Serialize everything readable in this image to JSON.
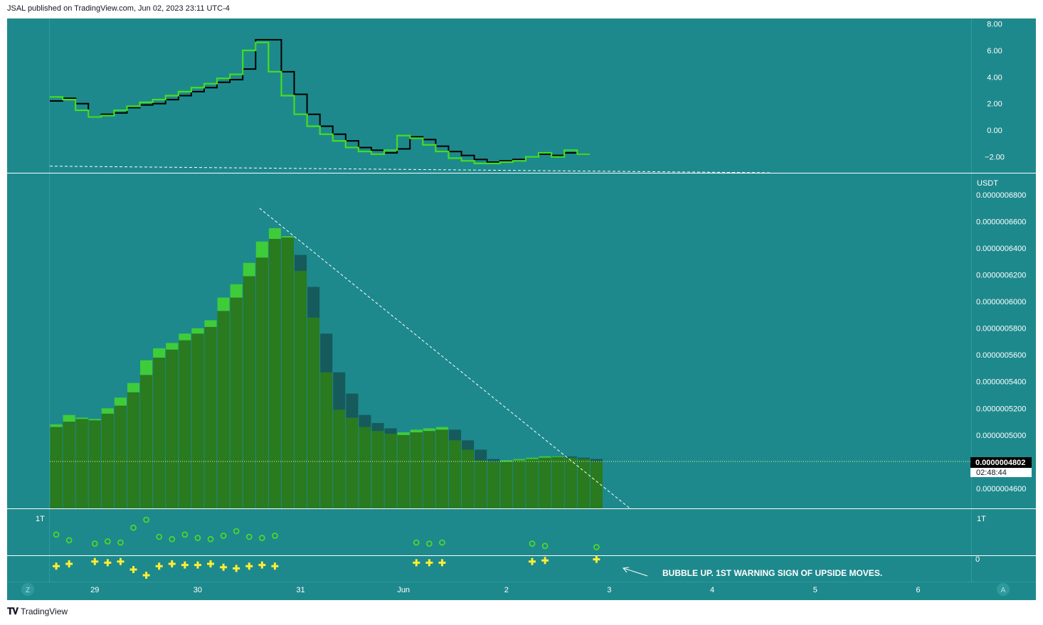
{
  "header": {
    "published": "JSAL published on TradingView.com, Jun 02, 2023 23:11 UTC-4"
  },
  "footer": {
    "brand": "TradingView"
  },
  "colors": {
    "bg": "#1e898c",
    "price_up": "#3fcc3a",
    "price_body": "#2a7a1f",
    "price_down": "#165a5c",
    "osc_green": "#44dd22",
    "osc_black": "#000000",
    "marker_yellow": "#ffee33",
    "marker_circle": "#55dd22",
    "divider": "#ffffff",
    "axis_text": "#ffffff"
  },
  "chart_data": [
    {
      "type": "line",
      "name": "oscillator",
      "yticks": [
        "8.00",
        "6.00",
        "4.00",
        "2.00",
        "0.00",
        "−2.00"
      ],
      "ylim": [
        -3.2,
        8.4
      ],
      "x": [
        0,
        1,
        2,
        3,
        4,
        5,
        6,
        7,
        8,
        9,
        10,
        11,
        12,
        13,
        14,
        15,
        16,
        17,
        18,
        19,
        20,
        21,
        22,
        23,
        24,
        25,
        26,
        27,
        28,
        29,
        30,
        31,
        32,
        33,
        34,
        35,
        36,
        37,
        38,
        39,
        40,
        41
      ],
      "series": [
        {
          "values": [
            2.5,
            2.3,
            1.5,
            1.0,
            1.1,
            1.5,
            1.8,
            2.1,
            2.3,
            2.6,
            2.9,
            3.2,
            3.5,
            3.9,
            4.2,
            6.0,
            6.6,
            4.4,
            2.6,
            1.2,
            0.3,
            -0.3,
            -0.8,
            -1.3,
            -1.6,
            -1.8,
            -1.5,
            -0.4,
            -0.6,
            -1.1,
            -1.6,
            -2.1,
            -2.3,
            -2.5,
            -2.5,
            -2.4,
            -2.3,
            -2.0,
            -1.7,
            -2.0,
            -1.5,
            -1.8
          ]
        },
        {
          "values": [
            2.2,
            2.4,
            2.0,
            1.0,
            1.2,
            1.3,
            1.7,
            1.9,
            2.0,
            2.3,
            2.6,
            2.9,
            3.2,
            3.6,
            3.8,
            4.6,
            6.8,
            6.8,
            4.4,
            2.7,
            1.2,
            0.3,
            -0.3,
            -0.8,
            -1.3,
            -1.5,
            -1.7,
            -1.4,
            -0.5,
            -0.7,
            -1.2,
            -1.6,
            -1.9,
            -2.2,
            -2.4,
            -2.3,
            -2.2,
            -2.0,
            -1.8,
            -1.9,
            -1.7,
            -1.8
          ]
        }
      ],
      "trendline": {
        "from": [
          0,
          -2.7
        ],
        "to": [
          56,
          -3.2
        ]
      }
    },
    {
      "type": "bar",
      "name": "price",
      "unit": "USDT",
      "yticks": [
        "0.0000006800",
        "0.0000006600",
        "0.0000006400",
        "0.0000006200",
        "0.0000006000",
        "0.0000005800",
        "0.0000005600",
        "0.0000005400",
        "0.0000005200",
        "0.0000005000",
        "0.0000004600"
      ],
      "ylim": [
        4.45e-07,
        6.96e-07
      ],
      "base": 4.45e-07,
      "bars": [
        [
          5.06e-07,
          5.08e-07,
          "up"
        ],
        [
          5.1e-07,
          5.15e-07,
          "up"
        ],
        [
          5.12e-07,
          5.13e-07,
          "up"
        ],
        [
          5.11e-07,
          5.12e-07,
          "up"
        ],
        [
          5.16e-07,
          5.2e-07,
          "up"
        ],
        [
          5.22e-07,
          5.28e-07,
          "up"
        ],
        [
          5.32e-07,
          5.39e-07,
          "up"
        ],
        [
          5.45e-07,
          5.56e-07,
          "up"
        ],
        [
          5.58e-07,
          5.65e-07,
          "up"
        ],
        [
          5.64e-07,
          5.69e-07,
          "up"
        ],
        [
          5.71e-07,
          5.76e-07,
          "up"
        ],
        [
          5.76e-07,
          5.8e-07,
          "up"
        ],
        [
          5.81e-07,
          5.86e-07,
          "up"
        ],
        [
          5.93e-07,
          6.03e-07,
          "up"
        ],
        [
          6.03e-07,
          6.13e-07,
          "up"
        ],
        [
          6.19e-07,
          6.29e-07,
          "up"
        ],
        [
          6.33e-07,
          6.45e-07,
          "up"
        ],
        [
          6.47e-07,
          6.55e-07,
          "up"
        ],
        [
          6.48e-07,
          6.49e-07,
          "up"
        ],
        [
          6.23e-07,
          6.35e-07,
          "down"
        ],
        [
          5.88e-07,
          6.11e-07,
          "down"
        ],
        [
          5.47e-07,
          5.76e-07,
          "down"
        ],
        [
          5.19e-07,
          5.47e-07,
          "down"
        ],
        [
          5.13e-07,
          5.31e-07,
          "down"
        ],
        [
          5.06e-07,
          5.15e-07,
          "down"
        ],
        [
          5.03e-07,
          5.09e-07,
          "down"
        ],
        [
          5.01e-07,
          5.05e-07,
          "down"
        ],
        [
          5e-07,
          5.02e-07,
          "up"
        ],
        [
          5.02e-07,
          5.04e-07,
          "up"
        ],
        [
          5.03e-07,
          5.05e-07,
          "up"
        ],
        [
          5.04e-07,
          5.06e-07,
          "up"
        ],
        [
          4.96e-07,
          5.04e-07,
          "down"
        ],
        [
          4.89e-07,
          4.96e-07,
          "down"
        ],
        [
          4.81e-07,
          4.89e-07,
          "down"
        ],
        [
          4.8e-07,
          4.82e-07,
          "down"
        ],
        [
          4.8e-07,
          4.81e-07,
          "up"
        ],
        [
          4.81e-07,
          4.82e-07,
          "up"
        ],
        [
          4.82e-07,
          4.83e-07,
          "up"
        ],
        [
          4.83e-07,
          4.84e-07,
          "up"
        ],
        [
          4.84e-07,
          4.84e-07,
          "up"
        ],
        [
          4.83e-07,
          4.84e-07,
          "down"
        ],
        [
          4.82e-07,
          4.83e-07,
          "down"
        ],
        [
          4.802e-07,
          4.82e-07,
          "down"
        ]
      ],
      "trendline": {
        "from": [
          16.3,
          6.7e-07
        ],
        "to": [
          45.1,
          4.45e-07
        ]
      },
      "last_price": "0.0000004802",
      "countdown": "02:48:44"
    },
    {
      "type": "scatter",
      "name": "signals",
      "ylabel_left": "1T",
      "ylabel_right": "1T",
      "ylabel_zero": "0",
      "circles": [
        [
          0,
          1.2
        ],
        [
          1,
          0.7
        ],
        [
          3,
          0.4
        ],
        [
          4,
          0.6
        ],
        [
          5,
          0.5
        ],
        [
          6,
          1.8
        ],
        [
          7,
          2.5
        ],
        [
          8,
          1.0
        ],
        [
          9,
          0.8
        ],
        [
          10,
          1.2
        ],
        [
          11,
          0.9
        ],
        [
          12,
          0.8
        ],
        [
          13,
          1.1
        ],
        [
          14,
          1.5
        ],
        [
          15,
          1.0
        ],
        [
          16,
          0.9
        ],
        [
          17,
          1.1
        ],
        [
          28,
          0.5
        ],
        [
          29,
          0.4
        ],
        [
          30,
          0.5
        ],
        [
          37,
          0.4
        ],
        [
          38,
          0.2
        ],
        [
          42,
          0.1
        ]
      ],
      "crosses": [
        [
          0,
          -0.7
        ],
        [
          1,
          -0.5
        ],
        [
          3,
          -0.3
        ],
        [
          4,
          -0.4
        ],
        [
          5,
          -0.3
        ],
        [
          6,
          -1.0
        ],
        [
          7,
          -1.5
        ],
        [
          8,
          -0.7
        ],
        [
          9,
          -0.5
        ],
        [
          10,
          -0.6
        ],
        [
          11,
          -0.6
        ],
        [
          12,
          -0.5
        ],
        [
          13,
          -0.8
        ],
        [
          14,
          -0.9
        ],
        [
          15,
          -0.7
        ],
        [
          16,
          -0.6
        ],
        [
          17,
          -0.7
        ],
        [
          28,
          -0.4
        ],
        [
          29,
          -0.4
        ],
        [
          30,
          -0.4
        ],
        [
          37,
          -0.3
        ],
        [
          38,
          -0.2
        ],
        [
          42,
          -0.1
        ]
      ],
      "annotation": "BUBBLE UP. 1ST WARNING SIGN OF UPSIDE MOVES."
    }
  ],
  "x_axis": {
    "labels": [
      {
        "text": "29",
        "x": 3.5
      },
      {
        "text": "30",
        "x": 11.5
      },
      {
        "text": "31",
        "x": 19.5
      },
      {
        "text": "Jun",
        "x": 27.5
      },
      {
        "text": "2",
        "x": 35.5
      },
      {
        "text": "3",
        "x": 43.5
      },
      {
        "text": "4",
        "x": 51.5
      },
      {
        "text": "5",
        "x": 59.5
      },
      {
        "text": "6",
        "x": 67.5
      }
    ],
    "left_button": "Z",
    "right_button": "A"
  }
}
